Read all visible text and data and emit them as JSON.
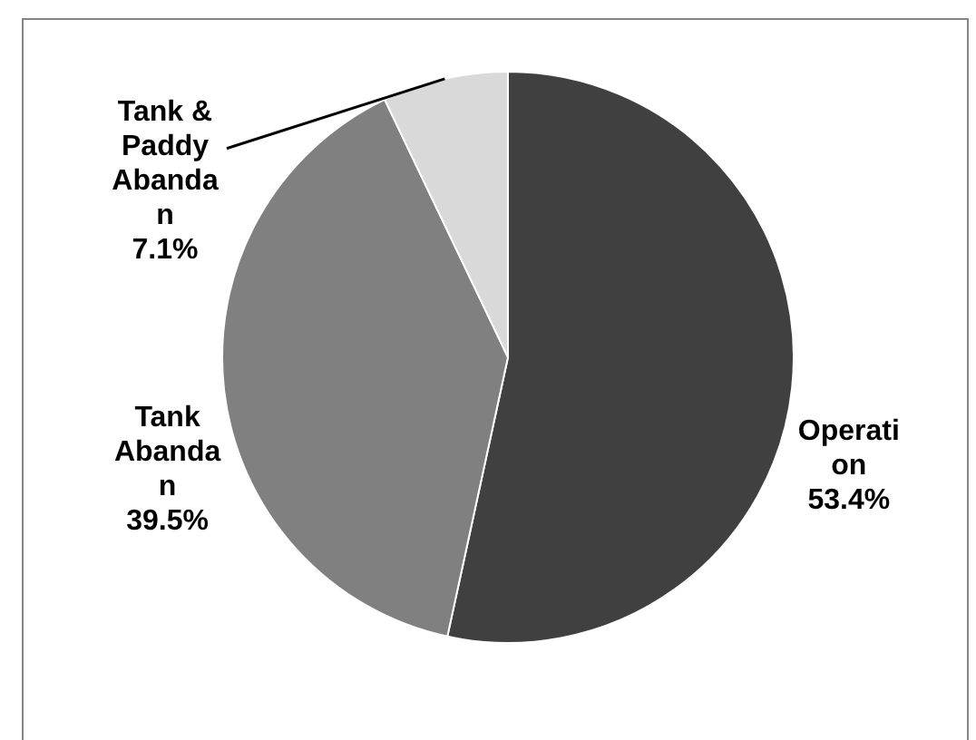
{
  "chart_data": {
    "type": "pie",
    "categories": [
      "Operation",
      "Tank Abandan",
      "Tank & Paddy Abandan"
    ],
    "values": [
      53.4,
      39.5,
      7.1
    ],
    "colors": [
      "#404040",
      "#808080",
      "#d9d9d9"
    ],
    "value_labels": [
      "53.4%",
      "39.5%",
      "7.1%"
    ],
    "legend": false
  }
}
